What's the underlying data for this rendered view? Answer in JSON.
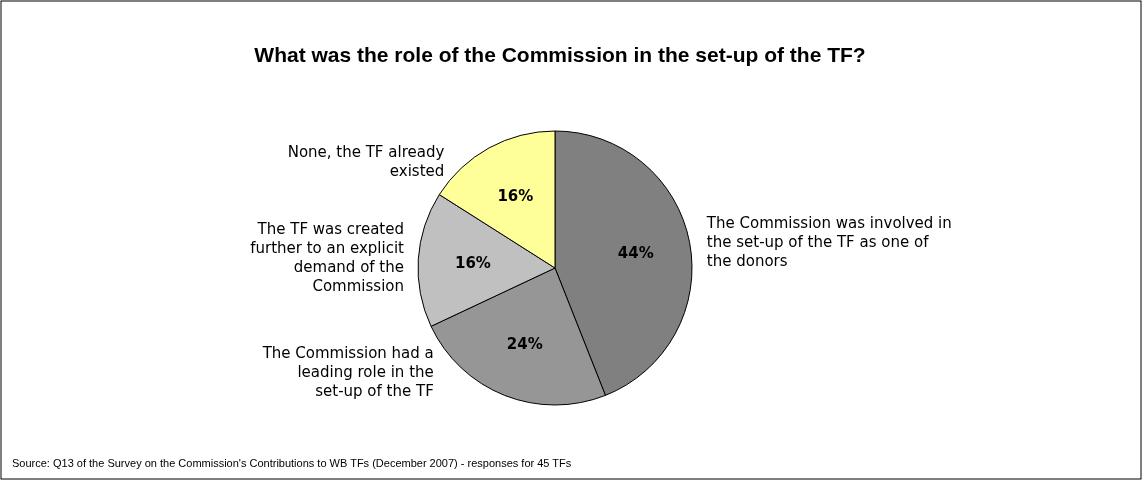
{
  "chart_data": {
    "type": "pie",
    "title": "What was the role of the Commission in the set-up of the TF?",
    "categories": [
      "The Commission was involved in the set-up of the TF as one of the donors",
      "The Commission had a leading role in the set-up of the TF",
      "The TF was created further to an explicit demand of the Commission",
      "None, the TF already existed"
    ],
    "values": [
      44,
      24,
      16,
      16
    ],
    "value_labels": [
      "44%",
      "24%",
      "16%",
      "16%"
    ],
    "colors": [
      "#808080",
      "#969696",
      "#c0c0c0",
      "#ffff99"
    ],
    "annotations": [
      "Source: Q13 of the Survey on the Commission's Contributions to WB TFs (December 2007) - responses for 45 TFs"
    ]
  }
}
